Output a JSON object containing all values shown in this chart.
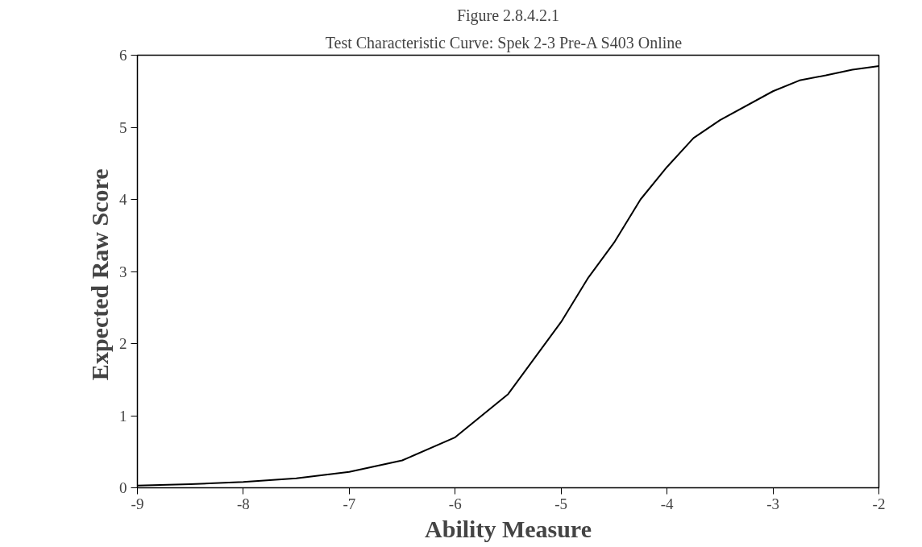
{
  "chart_data": {
    "type": "line",
    "title": "Figure 2.8.4.2.1",
    "subtitle": "Test Characteristic Curve:  Spek 2-3 Pre-A S403  Online",
    "xlabel": "Ability Measure",
    "ylabel": "Expected  Raw Score",
    "x": [
      -9,
      -8.5,
      -8,
      -7.5,
      -7,
      -6.5,
      -6,
      -5.5,
      -5,
      -4.75,
      -4.5,
      -4.25,
      -4,
      -3.75,
      -3.5,
      -3,
      -2.75,
      -2.5,
      -2.25,
      -2
    ],
    "series": [
      {
        "color": "#000000",
        "values": [
          0.03,
          0.05,
          0.08,
          0.13,
          0.22,
          0.38,
          0.7,
          1.3,
          2.3,
          2.9,
          3.4,
          4.0,
          4.45,
          4.85,
          5.1,
          5.5,
          5.65,
          5.72,
          5.8,
          5.85
        ]
      }
    ],
    "xlim": [
      -9,
      -2
    ],
    "xticks": [
      -9,
      -8,
      -7,
      -6,
      -5,
      -4,
      -3,
      -2
    ],
    "ylim": [
      0,
      6
    ],
    "yticks": [
      0,
      1,
      2,
      3,
      4,
      5,
      6
    ],
    "line_style": "solid"
  }
}
